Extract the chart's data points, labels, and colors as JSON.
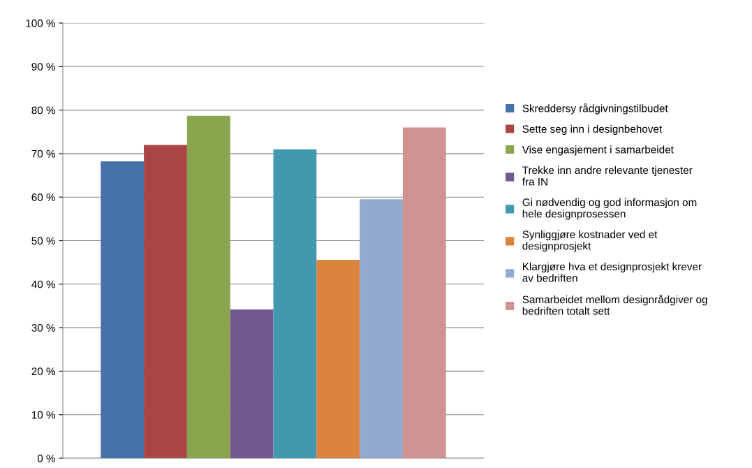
{
  "chart_data": {
    "type": "bar",
    "categories": [
      null
    ],
    "series": [
      {
        "name": "Skreddersy rådgivningstilbudet",
        "color": "#4572a7",
        "values": [
          68.2
        ]
      },
      {
        "name": "Sette seg inn i designbehovet",
        "color": "#aa4643",
        "values": [
          72
        ]
      },
      {
        "name": "Vise engasjement i samarbeidet",
        "color": "#89a54e",
        "values": [
          78.7
        ]
      },
      {
        "name": "Trekke inn andre relevante tjenester fra IN",
        "color": "#71588f",
        "values": [
          34.2
        ]
      },
      {
        "name": "Gi nødvendig og god informasjon om hele designprosessen",
        "color": "#4198af",
        "values": [
          71
        ]
      },
      {
        "name": "Synliggjøre kostnader ved et designprosjekt",
        "color": "#db843d",
        "values": [
          45.6
        ]
      },
      {
        "name": "Klargjøre hva et designprosjekt krever av bedriften",
        "color": "#93a9cf",
        "values": [
          59.5
        ]
      },
      {
        "name": "Samarbeidet mellom designrådgiver og bedriften totalt sett",
        "color": "#d19392",
        "values": [
          76
        ]
      }
    ],
    "ylim": [
      0,
      100
    ],
    "yticks": [
      {
        "value": 0,
        "label": "0 %"
      },
      {
        "value": 10,
        "label": "10 %"
      },
      {
        "value": 20,
        "label": "20 %"
      },
      {
        "value": 30,
        "label": "30 %"
      },
      {
        "value": 40,
        "label": "40 %"
      },
      {
        "value": 50,
        "label": "50 %"
      },
      {
        "value": 60,
        "label": "60 %"
      },
      {
        "value": 70,
        "label": "70 %"
      },
      {
        "value": 80,
        "label": "80 %"
      },
      {
        "value": 90,
        "label": "90 %"
      },
      {
        "value": 100,
        "label": "100 %"
      }
    ],
    "grid": "y",
    "legend": "right",
    "tick_labels": "y"
  }
}
